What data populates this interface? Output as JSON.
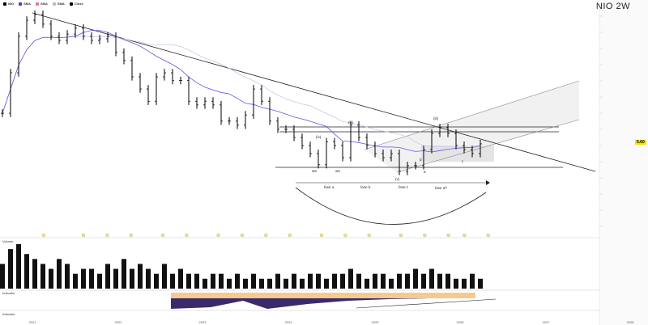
{
  "header": {
    "symbol_title": "NIO  2W",
    "badge": "5.60"
  },
  "legend": [
    {
      "label": "NIO",
      "color": "#000000"
    },
    {
      "label": "SMA",
      "color": "#3b3bdc"
    },
    {
      "label": "SMA",
      "color": "#f06db0"
    },
    {
      "label": "SMA",
      "color": "#bbbbbb"
    },
    {
      "label": "Close",
      "color": "#000000"
    }
  ],
  "chart_data": {
    "type": "ohlc",
    "x_ticks": [
      "2021",
      "2022",
      "2023",
      "2024",
      "2025",
      "2026",
      "2027",
      "2028"
    ],
    "closes": [
      9.2,
      20.1,
      40.7,
      55.5,
      62,
      51.5,
      40.7,
      37.6,
      42.5,
      47.6,
      40.7,
      37.6,
      38.8,
      40.7,
      29.8,
      25.5,
      18.6,
      14.7,
      11.6,
      18.6,
      20.1,
      17.3,
      17.3,
      11.6,
      10.8,
      11.6,
      10.8,
      7.9,
      7.9,
      7.3,
      8.9,
      14.7,
      11.6,
      7.9,
      6.75,
      6.75,
      5.76,
      4.93,
      4.22,
      3.4,
      5.3,
      4.93,
      3.9,
      7.3,
      5.76,
      4.93,
      4.22,
      3.9,
      4.22,
      2.99,
      3.34,
      3.34,
      4.56,
      6.23,
      6.95,
      6.23,
      4.93,
      4.56,
      4.22,
      5.09
    ],
    "volume": [
      5,
      8,
      9,
      7,
      6,
      5,
      4,
      6,
      5,
      3,
      4,
      4,
      3,
      5,
      4,
      6,
      4,
      5,
      4,
      3,
      5,
      3,
      4,
      3,
      3,
      2,
      3,
      3,
      2,
      3,
      2,
      3,
      2,
      2,
      3,
      2,
      3,
      2,
      3,
      3,
      2,
      3,
      3,
      4,
      3,
      2,
      3,
      3,
      2,
      3,
      3,
      4,
      3,
      4,
      3,
      3,
      2,
      2,
      3,
      2
    ],
    "y_scale": "log",
    "current_price": 5.6,
    "series_colors": {
      "price": "#000000",
      "ma": "#5b5bdc",
      "ma_slow": "#c8c8e8",
      "trend": "#222222",
      "indicator_fill": "#f7c98d",
      "indicator_dark": "#3a2a6a"
    },
    "annotations": {
      "phases": [
        "fase a",
        "fase b",
        "fase c",
        "fase d?"
      ],
      "waves": [
        "(iii)",
        "(iv)",
        "w3",
        "w4",
        "(iii)",
        "b",
        "(v)",
        "c",
        "a"
      ]
    }
  },
  "panes": {
    "volume_label": "Volume",
    "indicator_label": "Indicator",
    "indicator2_label": "Indicator"
  }
}
